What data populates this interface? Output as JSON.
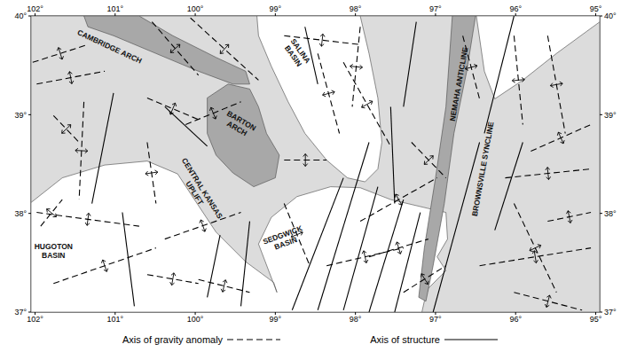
{
  "chart_data": {
    "type": "map",
    "xlim": [
      102.05,
      94.95
    ],
    "ylim": [
      37,
      40
    ],
    "xticks": [
      {
        "value": 102,
        "label": "102°"
      },
      {
        "value": 101,
        "label": "101°"
      },
      {
        "value": 100,
        "label": "100°"
      },
      {
        "value": 99,
        "label": "99°"
      },
      {
        "value": 98,
        "label": "98°"
      },
      {
        "value": 97,
        "label": "97°"
      },
      {
        "value": 96,
        "label": "96°"
      },
      {
        "value": 95,
        "label": "95°"
      }
    ],
    "yticks": [
      {
        "value": 37,
        "label": "37°"
      },
      {
        "value": 38,
        "label": "38°"
      },
      {
        "value": 39,
        "label": "39°"
      },
      {
        "value": 40,
        "label": "40°"
      }
    ],
    "grid": false,
    "legend": "bottom",
    "regions": [
      {
        "color": "#dcdcdc",
        "points": [
          [
            102.05,
            37
          ],
          [
            102.05,
            40
          ],
          [
            94.95,
            40
          ],
          [
            94.95,
            37
          ]
        ]
      },
      {
        "color": "#ffffff",
        "points": [
          [
            102.05,
            38.11
          ],
          [
            101.66,
            38.36
          ],
          [
            101.13,
            38.49
          ],
          [
            100.6,
            38.53
          ],
          [
            100.22,
            38.4
          ],
          [
            100.01,
            38.14
          ],
          [
            99.74,
            37.81
          ],
          [
            99.37,
            37.51
          ],
          [
            99.02,
            37.3
          ],
          [
            98.98,
            37.2
          ],
          [
            99.21,
            37.69
          ],
          [
            99.05,
            37.96
          ],
          [
            98.73,
            38.17
          ],
          [
            98.31,
            38.27
          ],
          [
            97.94,
            38.26
          ],
          [
            97.56,
            38.14
          ],
          [
            97.09,
            38.05
          ],
          [
            96.87,
            38.01
          ],
          [
            96.85,
            37.74
          ],
          [
            96.98,
            37.56
          ],
          [
            96.87,
            37.42
          ],
          [
            97.09,
            37.24
          ],
          [
            97.14,
            37.11
          ],
          [
            97.17,
            37.0
          ],
          [
            102.05,
            37.0
          ]
        ]
      },
      {
        "color": "#ffffff",
        "points": [
          [
            99.23,
            40.0
          ],
          [
            97.94,
            40.0
          ],
          [
            97.83,
            39.62
          ],
          [
            97.72,
            39.17
          ],
          [
            97.67,
            38.72
          ],
          [
            97.72,
            38.45
          ],
          [
            97.88,
            38.32
          ],
          [
            98.1,
            38.36
          ],
          [
            98.36,
            38.54
          ],
          [
            98.63,
            38.81
          ],
          [
            98.84,
            39.13
          ],
          [
            99.05,
            39.49
          ],
          [
            99.21,
            39.8
          ]
        ]
      },
      {
        "color": "#ffffff",
        "points": [
          [
            96.49,
            40.0
          ],
          [
            94.95,
            40.0
          ],
          [
            94.95,
            39.94
          ],
          [
            95.49,
            39.62
          ],
          [
            95.91,
            39.35
          ],
          [
            96.26,
            39.16
          ],
          [
            96.39,
            39.44
          ]
        ]
      },
      {
        "color": "#a8a8a8",
        "points": [
          [
            101.39,
            40.0
          ],
          [
            100.7,
            40.0
          ],
          [
            100.28,
            39.8
          ],
          [
            99.74,
            39.58
          ],
          [
            99.37,
            39.44
          ],
          [
            99.32,
            39.31
          ],
          [
            99.53,
            39.31
          ],
          [
            99.96,
            39.44
          ],
          [
            100.49,
            39.62
          ],
          [
            101.02,
            39.8
          ],
          [
            101.34,
            39.89
          ]
        ]
      },
      {
        "color": "#a8a8a8",
        "points": [
          [
            99.85,
            39.17
          ],
          [
            99.59,
            39.31
          ],
          [
            99.32,
            39.26
          ],
          [
            99.21,
            39.08
          ],
          [
            99.11,
            38.81
          ],
          [
            98.95,
            38.59
          ],
          [
            99.0,
            38.36
          ],
          [
            99.27,
            38.27
          ],
          [
            99.53,
            38.41
          ],
          [
            99.74,
            38.59
          ],
          [
            99.85,
            38.81
          ]
        ]
      },
      {
        "color": "#a8a8a8",
        "points": [
          [
            96.79,
            40.0
          ],
          [
            96.5,
            40.0
          ],
          [
            96.61,
            39.44
          ],
          [
            96.77,
            38.81
          ],
          [
            96.89,
            38.1
          ],
          [
            97.03,
            37.47
          ],
          [
            97.12,
            37.11
          ],
          [
            97.21,
            37.15
          ],
          [
            97.14,
            37.65
          ],
          [
            97.0,
            38.36
          ],
          [
            96.87,
            39.08
          ]
        ]
      }
    ],
    "labels": [
      {
        "lines": [
          "CAMBRIDGE ARCH"
        ],
        "x": 101.07,
        "y": 39.69
      },
      {
        "lines": [
          "SALINA",
          "BASIN"
        ],
        "x": 98.73,
        "y": 39.62
      },
      {
        "lines": [
          "BARTON",
          "ARCH"
        ],
        "x": 99.45,
        "y": 38.9
      },
      {
        "lines": [
          "CENTRAL KANSAS",
          "UPLIFT"
        ],
        "x": 99.96,
        "y": 38.23
      },
      {
        "lines": [
          "SEDGWICK",
          "BASIN"
        ],
        "x": 98.89,
        "y": 37.74
      },
      {
        "lines": [
          "HUGOTON",
          "BASIN"
        ],
        "x": 101.77,
        "y": 37.62
      },
      {
        "lines": [
          "NEMAHA ANTICLINE"
        ],
        "x": 96.71,
        "y": 39.31
      },
      {
        "lines": [
          "BROWNSVILLE SYNCLINE"
        ],
        "x": 96.41,
        "y": 38.45
      }
    ],
    "series": [
      {
        "name": "Axis of gravity anomaly",
        "color": "#000000",
        "line_style": "dashed",
        "marker": "arrows",
        "segments": [
          [
            [
              102.03,
              39.53
            ],
            [
              101.34,
              39.71
            ]
          ],
          [
            [
              101.98,
              39.31
            ],
            [
              101.13,
              39.44
            ]
          ],
          [
            [
              101.93,
              37.87
            ],
            [
              101.66,
              38.14
            ]
          ],
          [
            [
              101.98,
              38.01
            ],
            [
              100.7,
              37.87
            ]
          ],
          [
            [
              101.77,
              37.29
            ],
            [
              100.49,
              37.65
            ]
          ],
          [
            [
              100.54,
              39.94
            ],
            [
              99.96,
              39.4
            ]
          ],
          [
            [
              100.06,
              39.98
            ],
            [
              99.21,
              39.35
            ]
          ],
          [
            [
              100.12,
              38.9
            ],
            [
              99.43,
              39.13
            ]
          ],
          [
            [
              100.6,
              39.17
            ],
            [
              99.96,
              38.95
            ]
          ],
          [
            [
              100.38,
              37.74
            ],
            [
              99.43,
              38.01
            ]
          ],
          [
            [
              100.6,
              37.38
            ],
            [
              99.96,
              37.29
            ]
          ],
          [
            [
              99.96,
              37.33
            ],
            [
              99.32,
              37.2
            ]
          ],
          [
            [
              98.89,
              39.8
            ],
            [
              97.94,
              39.71
            ]
          ],
          [
            [
              98.47,
              39.62
            ],
            [
              98.2,
              38.81
            ]
          ],
          [
            [
              97.94,
              39.89
            ],
            [
              98.04,
              39.08
            ]
          ],
          [
            [
              98.15,
              39.53
            ],
            [
              97.56,
              38.68
            ]
          ],
          [
            [
              98.89,
              38.54
            ],
            [
              98.36,
              38.54
            ]
          ],
          [
            [
              98.89,
              38.1
            ],
            [
              98.57,
              37.47
            ]
          ],
          [
            [
              97.94,
              37.92
            ],
            [
              96.98,
              38.36
            ]
          ],
          [
            [
              97.83,
              37.56
            ],
            [
              97.09,
              37.74
            ]
          ],
          [
            [
              98.36,
              37.47
            ],
            [
              97.4,
              37.65
            ]
          ],
          [
            [
              97.4,
              37.2
            ],
            [
              96.87,
              37.47
            ]
          ],
          [
            [
              96.02,
              39.8
            ],
            [
              95.91,
              38.9
            ]
          ],
          [
            [
              95.6,
              39.8
            ],
            [
              95.38,
              38.81
            ]
          ],
          [
            [
              95.81,
              38.63
            ],
            [
              95.06,
              38.9
            ]
          ],
          [
            [
              96.13,
              38.36
            ],
            [
              95.06,
              38.45
            ]
          ],
          [
            [
              96.02,
              38.1
            ],
            [
              95.49,
              37.2
            ]
          ],
          [
            [
              95.6,
              37.92
            ],
            [
              95.06,
              38.01
            ]
          ],
          [
            [
              96.45,
              37.47
            ],
            [
              95.06,
              37.65
            ]
          ],
          [
            [
              96.02,
              37.2
            ],
            [
              95.17,
              37.02
            ]
          ],
          [
            [
              97.3,
              38.72
            ],
            [
              96.87,
              38.36
            ]
          ],
          [
            [
              101.39,
              39.13
            ],
            [
              101.45,
              38.14
            ]
          ],
          [
            [
              100.6,
              38.72
            ],
            [
              100.49,
              38.1
            ]
          ],
          [
            [
              101.77,
              38.99
            ],
            [
              101.45,
              38.72
            ]
          ],
          [
            [
              96.66,
              39.8
            ],
            [
              96.45,
              39.16
            ]
          ]
        ]
      },
      {
        "name": "Axis of structure",
        "color": "#000000",
        "line_style": "solid",
        "segments": [
          [
            [
              101.02,
              39.22
            ],
            [
              101.29,
              38.1
            ]
          ],
          [
            [
              100.91,
              38.01
            ],
            [
              100.76,
              37.06
            ]
          ],
          [
            [
              100.38,
              39.08
            ],
            [
              99.85,
              38.68
            ]
          ],
          [
            [
              99.69,
              37.78
            ],
            [
              99.85,
              37.15
            ]
          ],
          [
            [
              98.63,
              39.89
            ],
            [
              98.47,
              39.31
            ]
          ],
          [
            [
              98.79,
              37.02
            ],
            [
              98.15,
              38.36
            ]
          ],
          [
            [
              98.47,
              37.02
            ],
            [
              97.83,
              38.72
            ]
          ],
          [
            [
              98.15,
              37.02
            ],
            [
              97.72,
              38.27
            ]
          ],
          [
            [
              97.83,
              37.0
            ],
            [
              97.4,
              38.14
            ]
          ],
          [
            [
              97.51,
              37.0
            ],
            [
              97.19,
              38.01
            ]
          ],
          [
            [
              97.56,
              39.08
            ],
            [
              97.51,
              38.1
            ]
          ],
          [
            [
              97.03,
              37.0
            ],
            [
              96.45,
              38.72
            ]
          ],
          [
            [
              96.39,
              38.81
            ],
            [
              96.02,
              40.0
            ]
          ],
          [
            [
              96.26,
              37.83
            ],
            [
              95.91,
              38.72
            ]
          ],
          [
            [
              97.24,
              39.94
            ],
            [
              97.4,
              39.08
            ]
          ],
          [
            [
              99.32,
              37.92
            ],
            [
              99.43,
              37.06
            ]
          ]
        ]
      }
    ]
  }
}
